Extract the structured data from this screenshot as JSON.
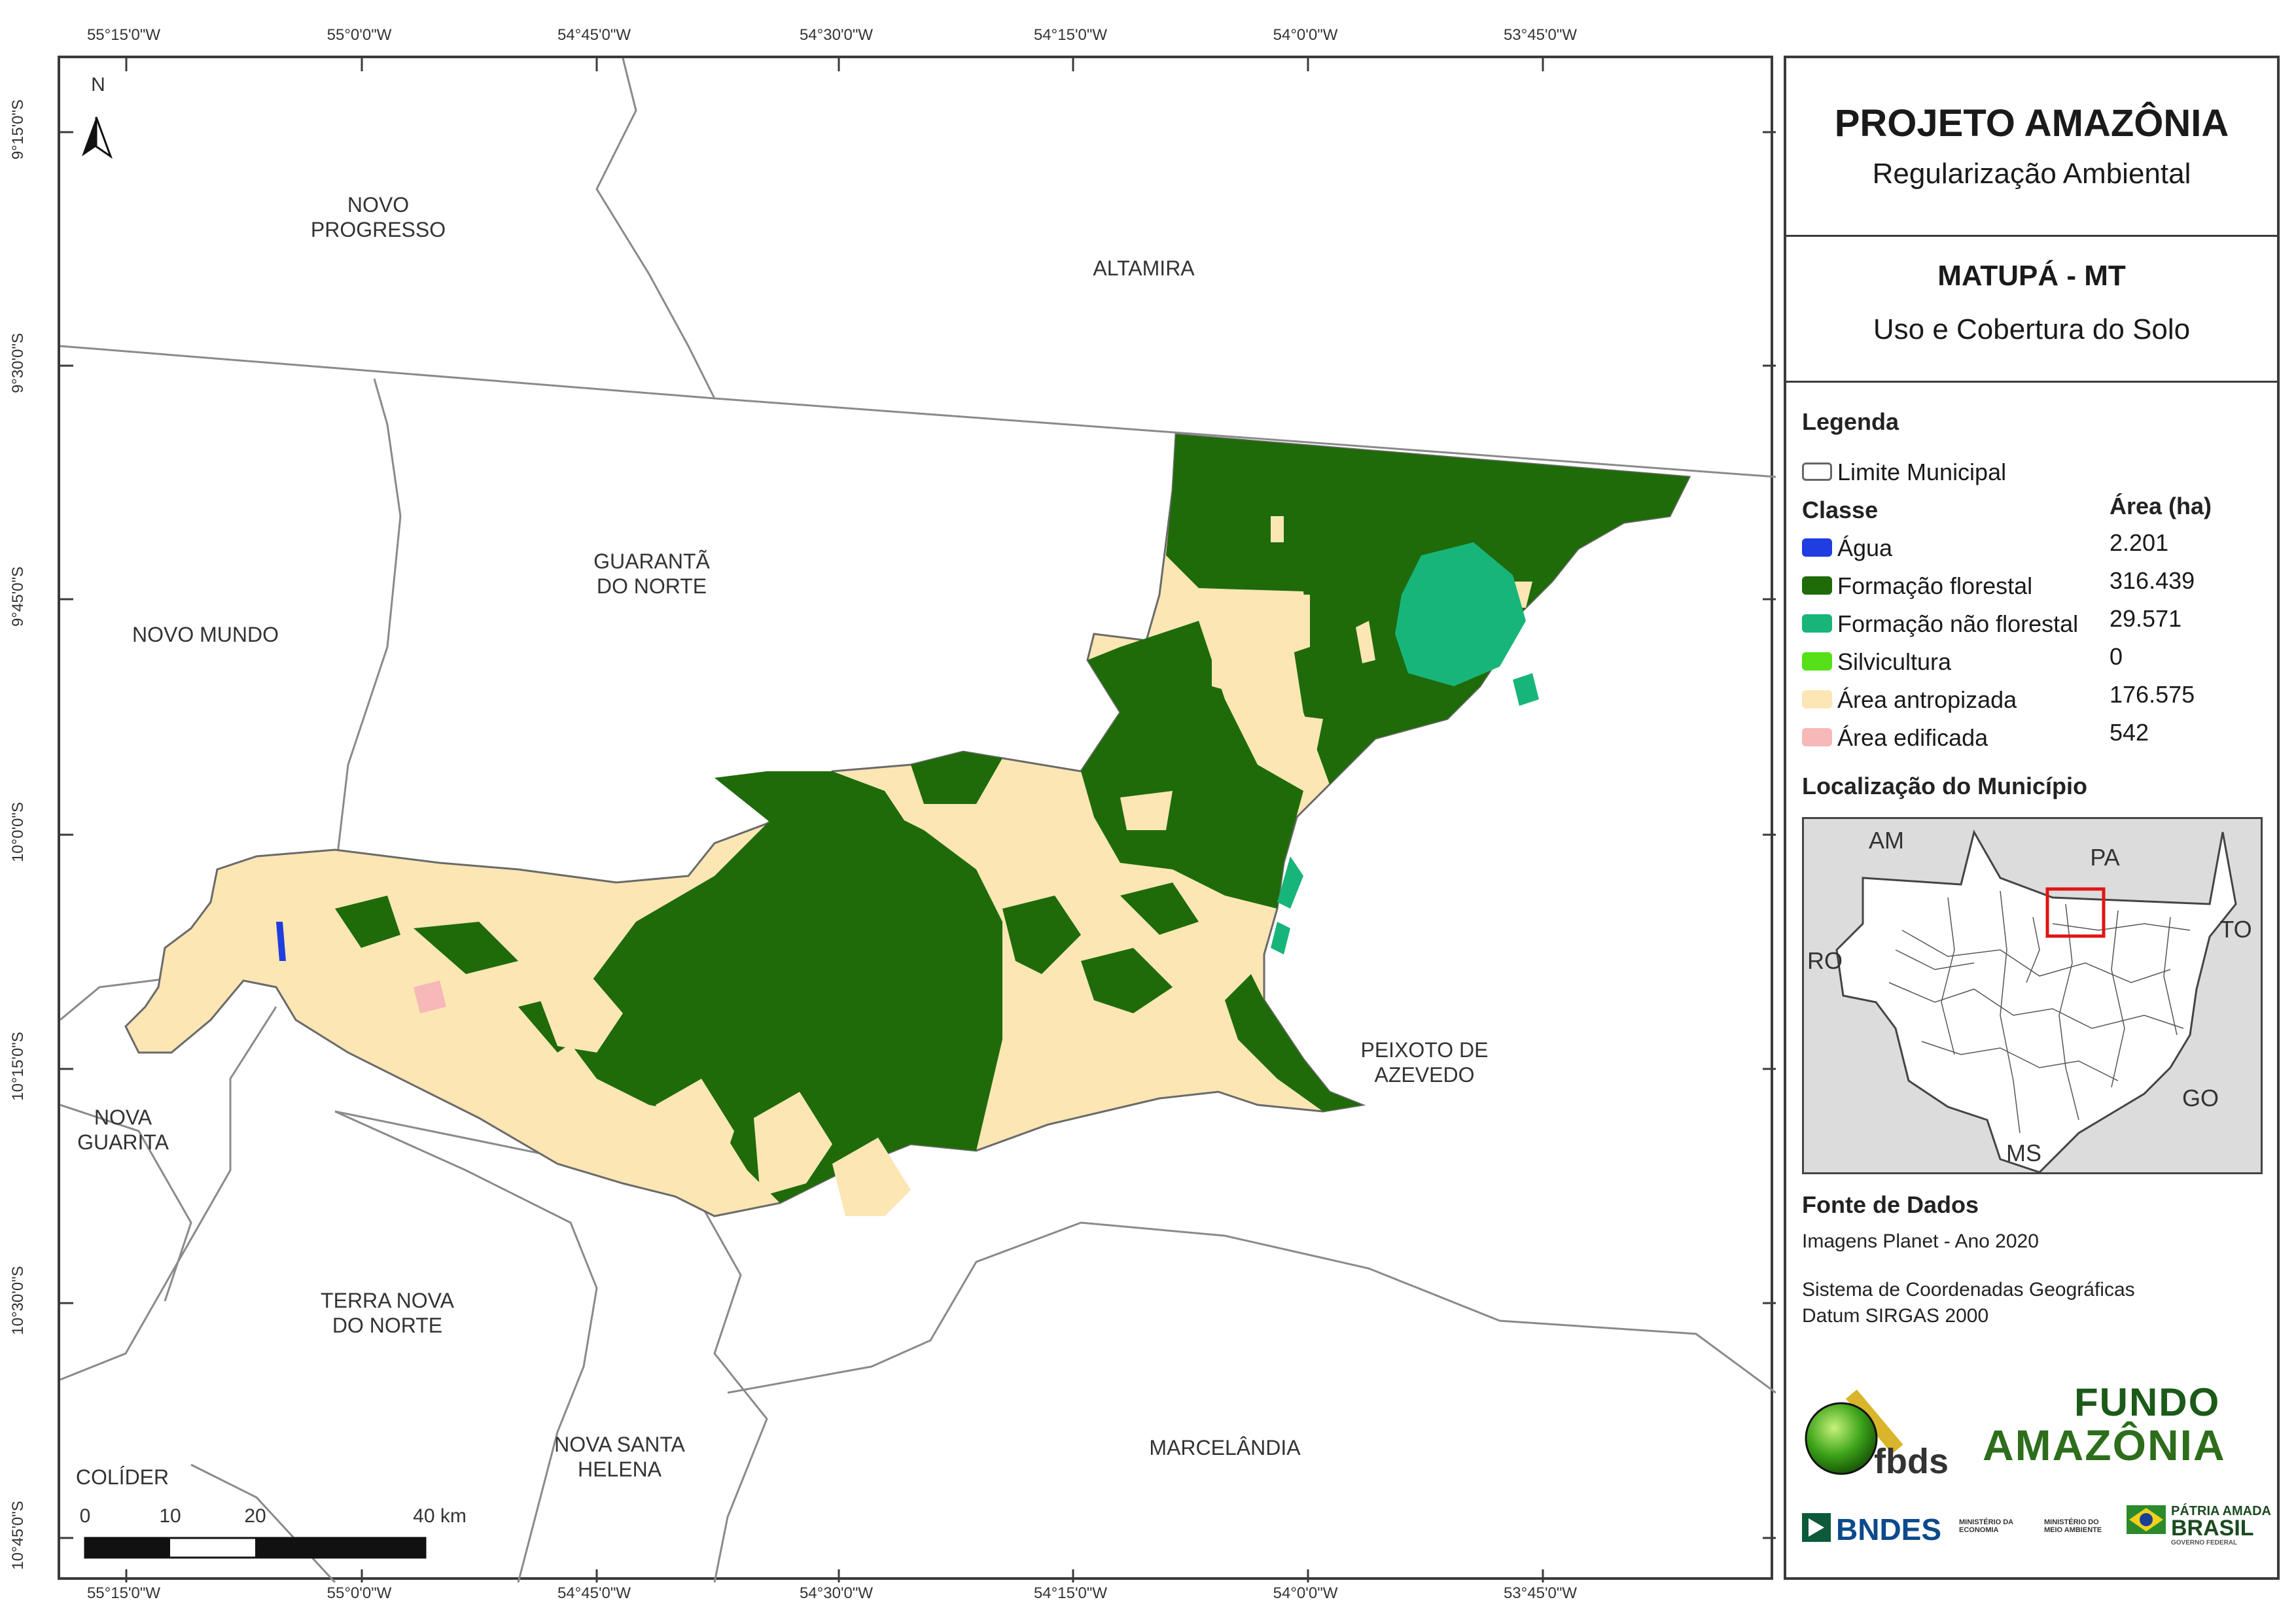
{
  "map": {
    "top_ticks": [
      "55°15'0\"W",
      "55°0'0\"W",
      "54°45'0\"W",
      "54°30'0\"W",
      "54°15'0\"W",
      "54°0'0\"W",
      "53°45'0\"W"
    ],
    "bottom_ticks": [
      "55°15'0\"W",
      "55°0'0\"W",
      "54°45'0\"W",
      "54°30'0\"W",
      "54°15'0\"W",
      "54°0'0\"W",
      "53°45'0\"W"
    ],
    "left_ticks": [
      "9°15'0\"S",
      "9°30'0\"S",
      "9°45'0\"S",
      "10°0'0\"S",
      "10°15'0\"S",
      "10°30'0\"S",
      "10°45'0\"S"
    ],
    "north_label": "N",
    "places": {
      "novo_progresso_1": "NOVO",
      "novo_progresso_2": "PROGRESSO",
      "altamira": "ALTAMIRA",
      "guaranta_1": "GUARANTÃ",
      "guaranta_2": "DO NORTE",
      "novo_mundo": "NOVO MUNDO",
      "peixoto_1": "PEIXOTO DE",
      "peixoto_2": "AZEVEDO",
      "nova_guarita_1": "NOVA",
      "nova_guarita_2": "GUARITA",
      "terra_nova_1": "TERRA NOVA",
      "terra_nova_2": "DO NORTE",
      "nova_santa_1": "NOVA SANTA",
      "nova_santa_2": "HELENA",
      "marcelandia": "MARCELÂNDIA",
      "colider": "COLÍDER"
    },
    "scale": {
      "labels": [
        "0",
        "10",
        "20",
        "40 km"
      ]
    }
  },
  "panel": {
    "title": "PROJETO AMAZÔNIA",
    "subtitle": "Regularização Ambiental",
    "municipality": "MATUPÁ - MT",
    "theme": "Uso e Cobertura do Solo",
    "legend_heading": "Legenda",
    "boundary_label": "Limite Municipal",
    "class_heading": "Classe",
    "area_heading": "Área (ha)",
    "classes": [
      {
        "label": "Água",
        "value": "2.201",
        "color": "#1f3de0"
      },
      {
        "label": "Formação florestal",
        "value": "316.439",
        "color": "#1f6b0a"
      },
      {
        "label": "Formação não florestal",
        "value": "29.571",
        "color": "#17b57a"
      },
      {
        "label": "Silvicultura",
        "value": "0",
        "color": "#55e017"
      },
      {
        "label": "Área antropizada",
        "value": "176.575",
        "color": "#fbe6b4"
      },
      {
        "label": "Área edificada",
        "value": "542",
        "color": "#f6b8b8"
      }
    ],
    "location_heading": "Localização do Município",
    "inset_labels": {
      "am": "AM",
      "pa": "PA",
      "to": "TO",
      "ro": "RO",
      "go": "GO",
      "ms": "MS"
    },
    "source_heading": "Fonte de Dados",
    "source_line1": "Imagens Planet - Ano 2020",
    "source_line2": "Sistema de Coordenadas Geográficas",
    "source_line3": "Datum SIRGAS 2000",
    "logos": {
      "fbds": "fbds",
      "fundo_1": "FUNDO",
      "fundo_2": "AMAZÔNIA",
      "bndes": "BNDES",
      "min_economia": "MINISTÉRIO DA ECONOMIA",
      "min_ambiente": "MINISTÉRIO DO MEIO AMBIENTE",
      "patria_1": "PÁTRIA AMADA",
      "patria_2": "BRASIL",
      "patria_3": "GOVERNO FEDERAL"
    }
  }
}
